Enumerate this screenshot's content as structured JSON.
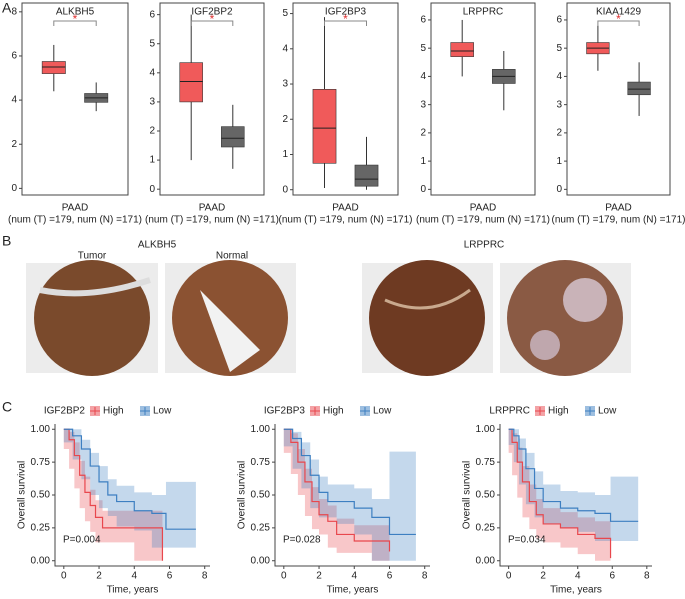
{
  "panel_labels": [
    "A",
    "B",
    "C"
  ],
  "tissue": {
    "titles": [
      "ALKBH5",
      "LRPPRC"
    ],
    "columns": [
      "Tumor",
      "Normal"
    ]
  },
  "chart_data": [
    {
      "type": "box",
      "title": "ALKBH5",
      "xlabel": "PAAD",
      "note": "(num (T) =179, num (N) =171)",
      "significance": "*",
      "ylim": [
        -0.3,
        8.4
      ],
      "yticks": [
        0,
        2,
        4,
        6,
        8
      ],
      "boxes": [
        {
          "color": "#f05a5a",
          "q1": 5.2,
          "median": 5.5,
          "q3": 5.75,
          "whisker_low": 4.4,
          "whisker_high": 6.5
        },
        {
          "color": "#666666",
          "q1": 3.9,
          "median": 4.1,
          "q3": 4.3,
          "whisker_low": 3.5,
          "whisker_high": 4.8
        }
      ]
    },
    {
      "type": "box",
      "title": "IGF2BP2",
      "xlabel": "PAAD",
      "note": "(num (T) =179, num (N) =171)",
      "significance": "*",
      "ylim": [
        -0.2,
        6.4
      ],
      "yticks": [
        0,
        1,
        2,
        3,
        4,
        5,
        6
      ],
      "boxes": [
        {
          "color": "#f05a5a",
          "q1": 3.0,
          "median": 3.7,
          "q3": 4.35,
          "whisker_low": 1.0,
          "whisker_high": 6.0
        },
        {
          "color": "#666666",
          "q1": 1.45,
          "median": 1.75,
          "q3": 2.15,
          "whisker_low": 0.7,
          "whisker_high": 2.9
        }
      ]
    },
    {
      "type": "box",
      "title": "IGF2BP3",
      "xlabel": "PAAD",
      "note": "(num (T) =179, num (N) =171)",
      "significance": "*",
      "ylim": [
        -0.15,
        5.3
      ],
      "yticks": [
        0,
        1,
        2,
        3,
        4,
        5
      ],
      "boxes": [
        {
          "color": "#f05a5a",
          "q1": 0.75,
          "median": 1.75,
          "q3": 2.85,
          "whisker_low": 0.05,
          "whisker_high": 4.9
        },
        {
          "color": "#666666",
          "q1": 0.1,
          "median": 0.3,
          "q3": 0.7,
          "whisker_low": 0,
          "whisker_high": 1.5
        }
      ]
    },
    {
      "type": "box",
      "title": "LRPPRC",
      "xlabel": "PAAD",
      "note": "(num (T) =179, num (N) =171)",
      "ylim": [
        -0.2,
        6.6
      ],
      "yticks": [
        0,
        1,
        2,
        3,
        4,
        5,
        6
      ],
      "boxes": [
        {
          "color": "#f05a5a",
          "q1": 4.7,
          "median": 4.9,
          "q3": 5.2,
          "whisker_low": 4.0,
          "whisker_high": 6.0
        },
        {
          "color": "#666666",
          "q1": 3.75,
          "median": 4.0,
          "q3": 4.25,
          "whisker_low": 2.8,
          "whisker_high": 4.9
        }
      ]
    },
    {
      "type": "box",
      "title": "KIAA1429",
      "xlabel": "PAAD",
      "note": "(num (T) =179, num (N) =171)",
      "significance": "*",
      "ylim": [
        -0.2,
        6.6
      ],
      "yticks": [
        0,
        1,
        2,
        3,
        4,
        5,
        6
      ],
      "boxes": [
        {
          "color": "#f05a5a",
          "q1": 4.8,
          "median": 5.0,
          "q3": 5.2,
          "whisker_low": 4.2,
          "whisker_high": 5.8
        },
        {
          "color": "#666666",
          "q1": 3.35,
          "median": 3.55,
          "q3": 3.8,
          "whisker_low": 2.6,
          "whisker_high": 4.5
        }
      ]
    },
    {
      "type": "km",
      "legend_title": "IGF2BP2",
      "xlabel": "Time, years",
      "ylabel": "Overall survival",
      "annotation": "P=0.004",
      "xlim": [
        -0.5,
        8.3
      ],
      "xticks": [
        0,
        2,
        4,
        6,
        8
      ],
      "ylim": [
        -0.04,
        1.04
      ],
      "yticks": [
        {
          "value": 0,
          "label": "0.00"
        },
        {
          "value": 0.25,
          "label": "0.25"
        },
        {
          "value": 0.5,
          "label": "0.50"
        },
        {
          "value": 0.75,
          "label": "0.75"
        },
        {
          "value": 1,
          "label": "1.00"
        }
      ],
      "series": [
        {
          "name": "High",
          "color": "#e8474d",
          "x": [
            0,
            0.3,
            0.6,
            0.9,
            1.2,
            1.5,
            1.8,
            2.2,
            3,
            4,
            5.6
          ],
          "values": [
            1,
            0.92,
            0.8,
            0.65,
            0.52,
            0.42,
            0.33,
            0.25,
            0.25,
            0.25,
            0.0
          ],
          "lower": [
            1,
            0.85,
            0.7,
            0.55,
            0.4,
            0.3,
            0.22,
            0.14,
            0.14,
            0.14,
            0
          ],
          "upper": [
            1,
            0.98,
            0.9,
            0.76,
            0.64,
            0.54,
            0.46,
            0.38,
            0.38,
            0.38,
            0.25
          ]
        },
        {
          "name": "Low",
          "color": "#3d7fc1",
          "x": [
            0,
            0.5,
            1,
            1.5,
            2,
            2.5,
            3,
            4,
            5,
            5.8,
            7.5
          ],
          "values": [
            1,
            0.95,
            0.85,
            0.72,
            0.6,
            0.5,
            0.45,
            0.38,
            0.36,
            0.24,
            0.24
          ],
          "lower": [
            1,
            0.9,
            0.77,
            0.62,
            0.5,
            0.4,
            0.34,
            0.26,
            0.23,
            0.1,
            0.1
          ],
          "upper": [
            1,
            1,
            0.92,
            0.82,
            0.72,
            0.62,
            0.57,
            0.52,
            0.5,
            0.6,
            0.6
          ]
        }
      ]
    },
    {
      "type": "km",
      "legend_title": "IGF2BP3",
      "xlabel": "Time, years",
      "ylabel": "Overall survival",
      "annotation": "P=0.028",
      "xlim": [
        -0.5,
        8.3
      ],
      "xticks": [
        0,
        2,
        4,
        6,
        8
      ],
      "ylim": [
        -0.04,
        1.04
      ],
      "yticks": [
        {
          "value": 0,
          "label": "0.00"
        },
        {
          "value": 0.25,
          "label": "0.25"
        },
        {
          "value": 0.5,
          "label": "0.50"
        },
        {
          "value": 0.75,
          "label": "0.75"
        },
        {
          "value": 1,
          "label": "1.00"
        }
      ],
      "series": [
        {
          "name": "High",
          "color": "#e8474d",
          "x": [
            0,
            0.4,
            0.8,
            1.2,
            1.6,
            2,
            2.5,
            3,
            4,
            5,
            6
          ],
          "values": [
            1,
            0.9,
            0.75,
            0.6,
            0.45,
            0.35,
            0.3,
            0.2,
            0.15,
            0.15,
            0.07
          ],
          "lower": [
            1,
            0.82,
            0.66,
            0.5,
            0.34,
            0.24,
            0.2,
            0.1,
            0.06,
            0.06,
            0
          ],
          "upper": [
            1,
            0.97,
            0.85,
            0.7,
            0.56,
            0.47,
            0.42,
            0.32,
            0.27,
            0.27,
            0.22
          ]
        },
        {
          "name": "Low",
          "color": "#3d7fc1",
          "x": [
            0,
            0.5,
            1,
            1.5,
            2,
            2.5,
            3,
            4,
            5,
            6,
            7.5
          ],
          "values": [
            1,
            0.93,
            0.8,
            0.65,
            0.52,
            0.45,
            0.45,
            0.4,
            0.33,
            0.2,
            0.2
          ],
          "lower": [
            1,
            0.87,
            0.7,
            0.55,
            0.4,
            0.33,
            0.33,
            0.28,
            0.2,
            0.0,
            0.0
          ],
          "upper": [
            1,
            0.98,
            0.9,
            0.77,
            0.64,
            0.58,
            0.58,
            0.55,
            0.47,
            0.83,
            0.83
          ]
        }
      ]
    },
    {
      "type": "km",
      "legend_title": "LRPPRC",
      "xlabel": "Time, years",
      "ylabel": "Overall survival",
      "annotation": "P=0.034",
      "xlim": [
        -0.5,
        8.3
      ],
      "xticks": [
        0,
        2,
        4,
        6,
        8
      ],
      "ylim": [
        -0.04,
        1.04
      ],
      "yticks": [
        {
          "value": 0,
          "label": "0.00"
        },
        {
          "value": 0.25,
          "label": "0.25"
        },
        {
          "value": 0.5,
          "label": "0.50"
        },
        {
          "value": 0.75,
          "label": "0.75"
        },
        {
          "value": 1,
          "label": "1.00"
        }
      ],
      "series": [
        {
          "name": "High",
          "color": "#e8474d",
          "x": [
            0,
            0.2,
            0.5,
            0.8,
            1.2,
            1.6,
            2,
            3,
            4,
            5,
            5.9
          ],
          "values": [
            1,
            0.9,
            0.75,
            0.6,
            0.45,
            0.35,
            0.28,
            0.25,
            0.2,
            0.17,
            0.02
          ],
          "lower": [
            1,
            0.82,
            0.65,
            0.48,
            0.33,
            0.24,
            0.17,
            0.14,
            0.1,
            0.05,
            0
          ],
          "upper": [
            1,
            0.97,
            0.86,
            0.72,
            0.58,
            0.47,
            0.4,
            0.37,
            0.33,
            0.3,
            0.2
          ]
        },
        {
          "name": "Low",
          "color": "#3d7fc1",
          "x": [
            0,
            0.3,
            0.6,
            1,
            1.5,
            2,
            3,
            4,
            5,
            5.9,
            7.5
          ],
          "values": [
            1,
            0.95,
            0.85,
            0.7,
            0.55,
            0.45,
            0.4,
            0.38,
            0.36,
            0.3,
            0.3
          ],
          "lower": [
            1,
            0.88,
            0.75,
            0.58,
            0.43,
            0.33,
            0.28,
            0.25,
            0.22,
            0.15,
            0.15
          ],
          "upper": [
            1,
            1,
            0.93,
            0.82,
            0.68,
            0.58,
            0.53,
            0.52,
            0.5,
            0.64,
            0.64
          ]
        }
      ]
    }
  ]
}
